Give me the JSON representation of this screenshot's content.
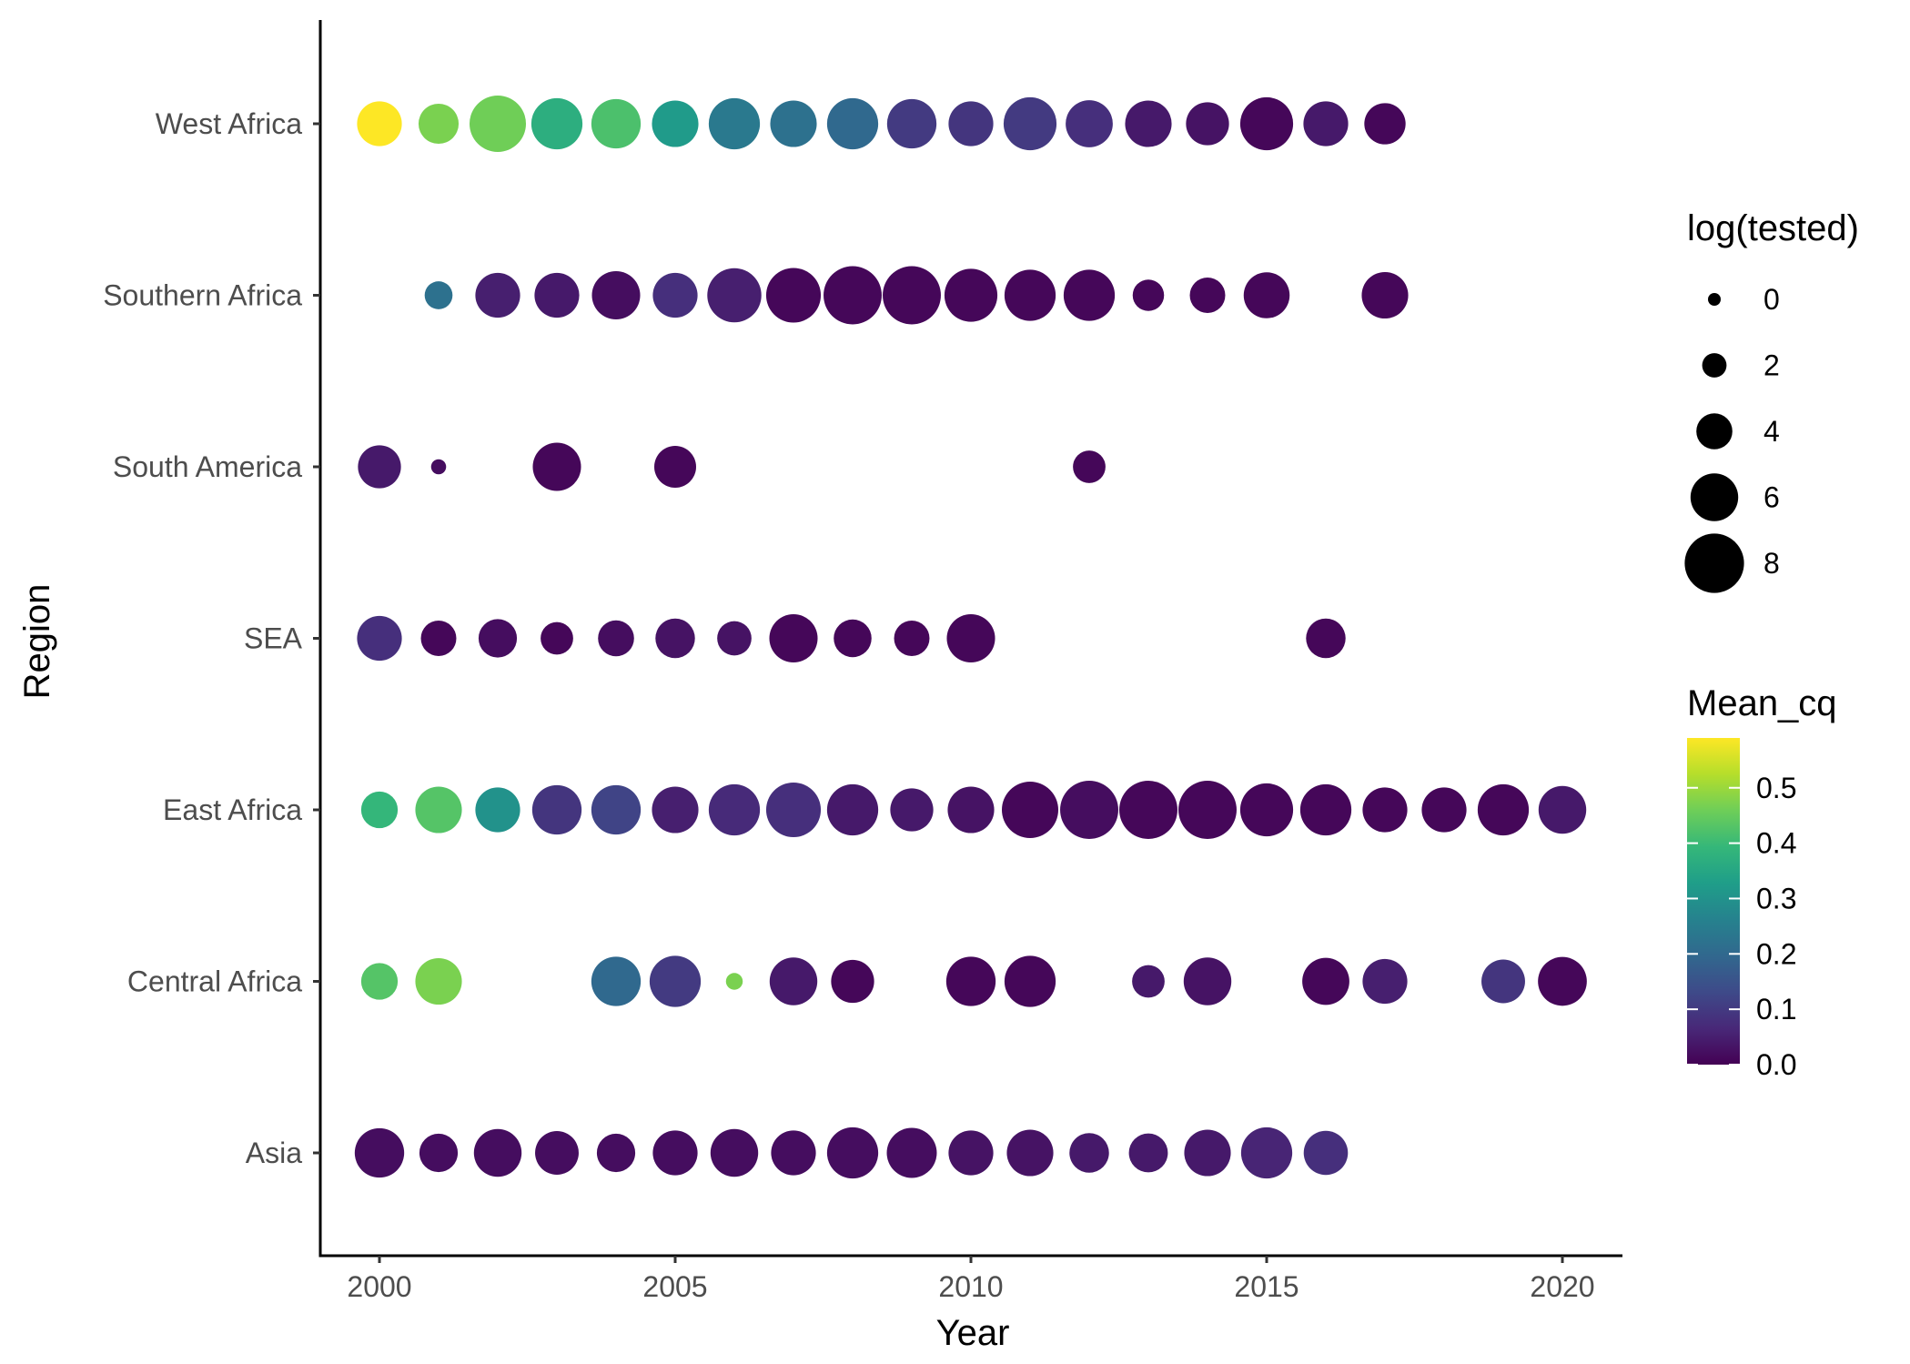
{
  "chart_data": {
    "type": "scatter",
    "xlabel": "Year",
    "ylabel": "Region",
    "xlim": [
      1999.0,
      2021.0
    ],
    "x_ticks": [
      2000,
      2005,
      2010,
      2015,
      2020
    ],
    "x_tick_labels": [
      "2000",
      "2005",
      "2010",
      "2015",
      "2020"
    ],
    "categories": [
      "West Africa",
      "Southern Africa",
      "South America",
      "SEA",
      "East Africa",
      "Central Africa",
      "Asia"
    ],
    "size_legend": {
      "title": "log(tested)",
      "values": [
        0,
        2,
        4,
        6,
        8
      ],
      "labels": [
        "0",
        "2",
        "4",
        "6",
        "8"
      ]
    },
    "color_legend": {
      "title": "Mean_cq",
      "min": 0.0,
      "max": 0.59,
      "ticks": [
        0.0,
        0.1,
        0.2,
        0.3,
        0.4,
        0.5
      ],
      "tick_labels": [
        "0.0",
        "0.1",
        "0.2",
        "0.3",
        "0.4",
        "0.5"
      ],
      "palette": [
        "#440154",
        "#482878",
        "#3e4a89",
        "#31688e",
        "#26828e",
        "#1f9e89",
        "#35b779",
        "#6ece58",
        "#b5de2b",
        "#fde725"
      ]
    },
    "series": [
      {
        "region": "West Africa",
        "points": [
          {
            "year": 2000,
            "log_tested": 5.5,
            "mean_cq": 0.59
          },
          {
            "year": 2001,
            "log_tested": 4.7,
            "mean_cq": 0.47
          },
          {
            "year": 2002,
            "log_tested": 7.5,
            "mean_cq": 0.46
          },
          {
            "year": 2003,
            "log_tested": 6.6,
            "mean_cq": 0.37
          },
          {
            "year": 2004,
            "log_tested": 6.3,
            "mean_cq": 0.42
          },
          {
            "year": 2005,
            "log_tested": 5.8,
            "mean_cq": 0.32
          },
          {
            "year": 2006,
            "log_tested": 6.6,
            "mean_cq": 0.24
          },
          {
            "year": 2007,
            "log_tested": 5.8,
            "mean_cq": 0.22
          },
          {
            "year": 2008,
            "log_tested": 6.6,
            "mean_cq": 0.2
          },
          {
            "year": 2009,
            "log_tested": 6.3,
            "mean_cq": 0.1
          },
          {
            "year": 2010,
            "log_tested": 5.5,
            "mean_cq": 0.09
          },
          {
            "year": 2011,
            "log_tested": 6.9,
            "mean_cq": 0.1
          },
          {
            "year": 2012,
            "log_tested": 5.9,
            "mean_cq": 0.08
          },
          {
            "year": 2013,
            "log_tested": 5.8,
            "mean_cq": 0.04
          },
          {
            "year": 2014,
            "log_tested": 5.2,
            "mean_cq": 0.03
          },
          {
            "year": 2015,
            "log_tested": 6.9,
            "mean_cq": 0.01
          },
          {
            "year": 2016,
            "log_tested": 5.5,
            "mean_cq": 0.04
          },
          {
            "year": 2017,
            "log_tested": 4.9,
            "mean_cq": 0.01
          }
        ]
      },
      {
        "region": "Southern Africa",
        "points": [
          {
            "year": 2001,
            "log_tested": 2.6,
            "mean_cq": 0.22
          },
          {
            "year": 2002,
            "log_tested": 5.5,
            "mean_cq": 0.05
          },
          {
            "year": 2003,
            "log_tested": 5.5,
            "mean_cq": 0.04
          },
          {
            "year": 2004,
            "log_tested": 6.1,
            "mean_cq": 0.02
          },
          {
            "year": 2005,
            "log_tested": 5.5,
            "mean_cq": 0.08
          },
          {
            "year": 2006,
            "log_tested": 7.1,
            "mean_cq": 0.05
          },
          {
            "year": 2007,
            "log_tested": 7.2,
            "mean_cq": 0.01
          },
          {
            "year": 2008,
            "log_tested": 7.8,
            "mean_cq": 0.01
          },
          {
            "year": 2009,
            "log_tested": 7.8,
            "mean_cq": 0.01
          },
          {
            "year": 2010,
            "log_tested": 6.9,
            "mean_cq": 0.01
          },
          {
            "year": 2011,
            "log_tested": 6.6,
            "mean_cq": 0.01
          },
          {
            "year": 2012,
            "log_tested": 6.6,
            "mean_cq": 0.01
          },
          {
            "year": 2013,
            "log_tested": 3.2,
            "mean_cq": 0.01
          },
          {
            "year": 2014,
            "log_tested": 3.9,
            "mean_cq": 0.01
          },
          {
            "year": 2015,
            "log_tested": 5.7,
            "mean_cq": 0.01
          },
          {
            "year": 2017,
            "log_tested": 5.8,
            "mean_cq": 0.01
          }
        ]
      },
      {
        "region": "South America",
        "points": [
          {
            "year": 2000,
            "log_tested": 5.2,
            "mean_cq": 0.04
          },
          {
            "year": 2001,
            "log_tested": 0.4,
            "mean_cq": 0.02
          },
          {
            "year": 2003,
            "log_tested": 6.1,
            "mean_cq": 0.01
          },
          {
            "year": 2005,
            "log_tested": 5.0,
            "mean_cq": 0.01
          },
          {
            "year": 2012,
            "log_tested": 3.4,
            "mean_cq": 0.01
          }
        ]
      },
      {
        "region": "SEA",
        "points": [
          {
            "year": 2000,
            "log_tested": 5.5,
            "mean_cq": 0.08
          },
          {
            "year": 2001,
            "log_tested": 3.9,
            "mean_cq": 0.01
          },
          {
            "year": 2002,
            "log_tested": 4.4,
            "mean_cq": 0.02
          },
          {
            "year": 2003,
            "log_tested": 3.4,
            "mean_cq": 0.01
          },
          {
            "year": 2004,
            "log_tested": 4.0,
            "mean_cq": 0.02
          },
          {
            "year": 2005,
            "log_tested": 4.6,
            "mean_cq": 0.03
          },
          {
            "year": 2006,
            "log_tested": 3.7,
            "mean_cq": 0.03
          },
          {
            "year": 2007,
            "log_tested": 6.1,
            "mean_cq": 0.01
          },
          {
            "year": 2008,
            "log_tested": 4.3,
            "mean_cq": 0.01
          },
          {
            "year": 2009,
            "log_tested": 3.9,
            "mean_cq": 0.01
          },
          {
            "year": 2010,
            "log_tested": 6.1,
            "mean_cq": 0.01
          },
          {
            "year": 2016,
            "log_tested": 4.6,
            "mean_cq": 0.01
          }
        ]
      },
      {
        "region": "East Africa",
        "points": [
          {
            "year": 2000,
            "log_tested": 4.1,
            "mean_cq": 0.39
          },
          {
            "year": 2001,
            "log_tested": 5.8,
            "mean_cq": 0.43
          },
          {
            "year": 2002,
            "log_tested": 5.5,
            "mean_cq": 0.3
          },
          {
            "year": 2003,
            "log_tested": 6.3,
            "mean_cq": 0.09
          },
          {
            "year": 2004,
            "log_tested": 6.3,
            "mean_cq": 0.12
          },
          {
            "year": 2005,
            "log_tested": 5.8,
            "mean_cq": 0.05
          },
          {
            "year": 2006,
            "log_tested": 6.6,
            "mean_cq": 0.07
          },
          {
            "year": 2007,
            "log_tested": 7.2,
            "mean_cq": 0.08
          },
          {
            "year": 2008,
            "log_tested": 6.6,
            "mean_cq": 0.04
          },
          {
            "year": 2009,
            "log_tested": 5.2,
            "mean_cq": 0.04
          },
          {
            "year": 2010,
            "log_tested": 5.8,
            "mean_cq": 0.03
          },
          {
            "year": 2011,
            "log_tested": 7.5,
            "mean_cq": 0.01
          },
          {
            "year": 2012,
            "log_tested": 7.8,
            "mean_cq": 0.02
          },
          {
            "year": 2013,
            "log_tested": 7.8,
            "mean_cq": 0.01
          },
          {
            "year": 2014,
            "log_tested": 7.8,
            "mean_cq": 0.01
          },
          {
            "year": 2015,
            "log_tested": 6.9,
            "mean_cq": 0.01
          },
          {
            "year": 2016,
            "log_tested": 6.6,
            "mean_cq": 0.01
          },
          {
            "year": 2017,
            "log_tested": 5.5,
            "mean_cq": 0.01
          },
          {
            "year": 2018,
            "log_tested": 5.5,
            "mean_cq": 0.01
          },
          {
            "year": 2019,
            "log_tested": 6.6,
            "mean_cq": 0.01
          },
          {
            "year": 2020,
            "log_tested": 6.0,
            "mean_cq": 0.04
          }
        ]
      },
      {
        "region": "Central Africa",
        "points": [
          {
            "year": 2000,
            "log_tested": 4.1,
            "mean_cq": 0.43
          },
          {
            "year": 2001,
            "log_tested": 5.8,
            "mean_cq": 0.47
          },
          {
            "year": 2004,
            "log_tested": 6.3,
            "mean_cq": 0.2
          },
          {
            "year": 2005,
            "log_tested": 6.6,
            "mean_cq": 0.1
          },
          {
            "year": 2006,
            "log_tested": 0.7,
            "mean_cq": 0.47
          },
          {
            "year": 2007,
            "log_tested": 6.0,
            "mean_cq": 0.04
          },
          {
            "year": 2008,
            "log_tested": 5.2,
            "mean_cq": 0.01
          },
          {
            "year": 2010,
            "log_tested": 6.3,
            "mean_cq": 0.01
          },
          {
            "year": 2011,
            "log_tested": 6.6,
            "mean_cq": 0.01
          },
          {
            "year": 2013,
            "log_tested": 3.4,
            "mean_cq": 0.04
          },
          {
            "year": 2014,
            "log_tested": 6.0,
            "mean_cq": 0.03
          },
          {
            "year": 2016,
            "log_tested": 5.9,
            "mean_cq": 0.01
          },
          {
            "year": 2017,
            "log_tested": 5.5,
            "mean_cq": 0.05
          },
          {
            "year": 2019,
            "log_tested": 5.3,
            "mean_cq": 0.09
          },
          {
            "year": 2020,
            "log_tested": 6.2,
            "mean_cq": 0.01
          }
        ]
      },
      {
        "region": "Asia",
        "points": [
          {
            "year": 2000,
            "log_tested": 6.3,
            "mean_cq": 0.02
          },
          {
            "year": 2001,
            "log_tested": 4.4,
            "mean_cq": 0.02
          },
          {
            "year": 2002,
            "log_tested": 6.0,
            "mean_cq": 0.02
          },
          {
            "year": 2003,
            "log_tested": 5.3,
            "mean_cq": 0.02
          },
          {
            "year": 2004,
            "log_tested": 4.4,
            "mean_cq": 0.02
          },
          {
            "year": 2005,
            "log_tested": 5.5,
            "mean_cq": 0.02
          },
          {
            "year": 2006,
            "log_tested": 6.0,
            "mean_cq": 0.02
          },
          {
            "year": 2007,
            "log_tested": 5.5,
            "mean_cq": 0.02
          },
          {
            "year": 2008,
            "log_tested": 6.6,
            "mean_cq": 0.02
          },
          {
            "year": 2009,
            "log_tested": 6.4,
            "mean_cq": 0.02
          },
          {
            "year": 2010,
            "log_tested": 5.5,
            "mean_cq": 0.03
          },
          {
            "year": 2011,
            "log_tested": 5.8,
            "mean_cq": 0.03
          },
          {
            "year": 2012,
            "log_tested": 4.6,
            "mean_cq": 0.04
          },
          {
            "year": 2013,
            "log_tested": 4.5,
            "mean_cq": 0.04
          },
          {
            "year": 2014,
            "log_tested": 5.8,
            "mean_cq": 0.04
          },
          {
            "year": 2015,
            "log_tested": 6.6,
            "mean_cq": 0.06
          },
          {
            "year": 2016,
            "log_tested": 5.4,
            "mean_cq": 0.08
          }
        ]
      }
    ]
  }
}
